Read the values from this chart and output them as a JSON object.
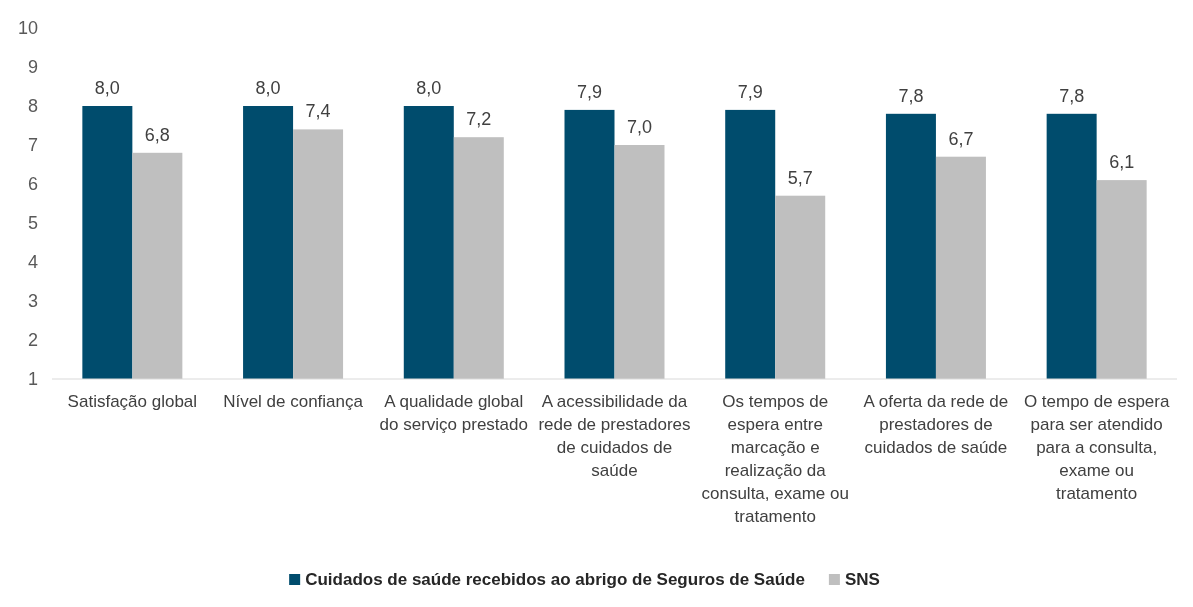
{
  "chart_data": {
    "type": "bar",
    "categories": [
      "Satisfação global",
      "Nível de confiança",
      "A qualidade global do serviço prestado",
      "A acessibilidade da rede de prestadores de cuidados de saúde",
      "Os tempos de espera entre marcação e realização da consulta, exame ou tratamento",
      "A oferta da rede de prestadores de cuidados de saúde",
      "O tempo de espera para ser atendido para a consulta, exame ou tratamento"
    ],
    "series": [
      {
        "name": "Cuidados de saúde recebidos ao abrigo de Seguros de Saúde",
        "color": "#004c6d",
        "values": [
          8.0,
          8.0,
          8.0,
          7.9,
          7.9,
          7.8,
          7.8
        ],
        "value_labels": [
          "8,0",
          "8,0",
          "8,0",
          "7,9",
          "7,9",
          "7,8",
          "7,8"
        ]
      },
      {
        "name": "SNS",
        "color": "#bfbfbf",
        "values": [
          6.8,
          7.4,
          7.2,
          7.0,
          5.7,
          6.7,
          6.1
        ],
        "value_labels": [
          "6,8",
          "7,4",
          "7,2",
          "7,0",
          "5,7",
          "6,7",
          "6,1"
        ]
      }
    ],
    "ylim": [
      1,
      10
    ],
    "yticks": [
      1,
      2,
      3,
      4,
      5,
      6,
      7,
      8,
      9,
      10
    ],
    "grid": false,
    "legend": "bottom"
  }
}
